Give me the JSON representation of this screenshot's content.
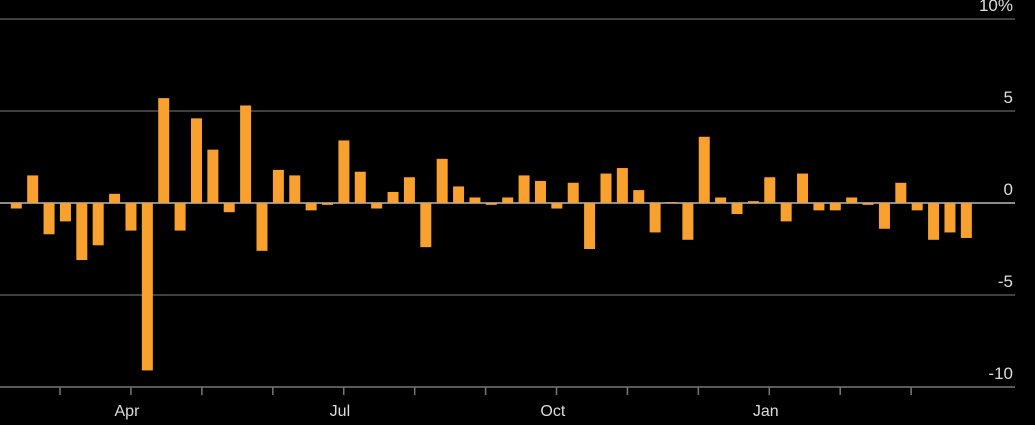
{
  "chart_data": {
    "type": "bar",
    "title": "",
    "xlabel": "",
    "ylabel": "",
    "y_unit_suffix": "%",
    "ylim": [
      -10,
      10
    ],
    "yticks": [
      10,
      5,
      0,
      -5,
      -10
    ],
    "ytick_labels": [
      "10%",
      "5",
      "0",
      "-5",
      "-10"
    ],
    "xticks": [
      {
        "label": "Apr",
        "index": 7
      },
      {
        "label": "Jul",
        "index": 20
      },
      {
        "label": "Oct",
        "index": 33
      },
      {
        "label": "Jan",
        "index": 46
      }
    ],
    "minor_tick_months_per_bar": 4.33,
    "grid": true,
    "bar_color": "#f9a12e",
    "values": [
      -0.3,
      1.5,
      -1.7,
      -1.0,
      -3.1,
      -2.3,
      0.5,
      -1.5,
      -9.1,
      5.7,
      -1.5,
      4.6,
      2.9,
      -0.5,
      5.3,
      -2.6,
      1.8,
      1.5,
      -0.4,
      -0.1,
      3.4,
      1.7,
      -0.3,
      0.6,
      1.4,
      -2.4,
      2.4,
      0.9,
      0.3,
      -0.1,
      0.3,
      1.5,
      1.2,
      -0.3,
      1.1,
      -2.5,
      1.6,
      1.9,
      0.7,
      -1.6,
      0.05,
      -2.0,
      3.6,
      0.3,
      -0.6,
      0.1,
      1.4,
      -1.0,
      1.6,
      -0.4,
      -0.4,
      0.3,
      -0.1,
      -1.4,
      1.1,
      -0.4,
      -2.0,
      -1.6,
      -1.9
    ]
  }
}
